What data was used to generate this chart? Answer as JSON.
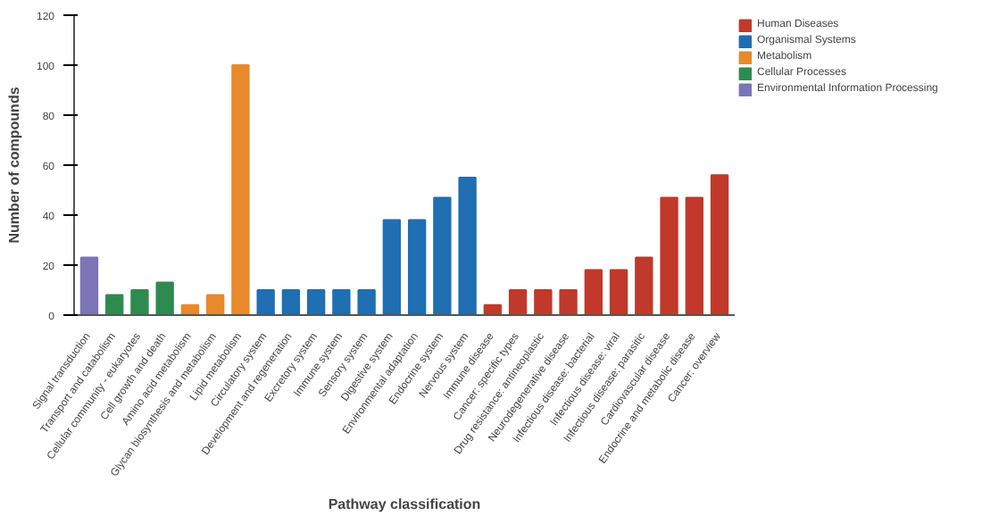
{
  "chart_data": {
    "type": "bar",
    "xlabel": "Pathway classification",
    "ylabel": "Number of compounds",
    "categories": [
      "Signal transduction",
      "Transport and catabolism",
      "Cellular community - eukaryotes",
      "Cell growth and death",
      "Amino acid metabolism",
      "Glycan biosynthesis and metabolism",
      "Lipid metabolism",
      "Circulatory system",
      "Development and regeneration",
      "Excretory system",
      "Immune system",
      "Sensory system",
      "Digestive system",
      "Environmental adaptation",
      "Endocrine system",
      "Nervous system",
      "Immune disease",
      "Cancer: specific types",
      "Drug resistance: antineoplastic",
      "Neurodegenerative disease",
      "Infectious disease: bacterial",
      "Infectious disease: viral",
      "Infectious disease: parasitic",
      "Cardiovascular disease",
      "Endocrine and metabolic disease",
      "Cancer: overview"
    ],
    "series": [
      {
        "name": "Human Diseases",
        "color": "#c0392b",
        "values": [
          null,
          null,
          null,
          null,
          null,
          null,
          null,
          null,
          null,
          null,
          null,
          null,
          null,
          null,
          null,
          null,
          4,
          10,
          10,
          10,
          18,
          18,
          23,
          47,
          47,
          56
        ]
      },
      {
        "name": "Organismal Systems",
        "color": "#1f6fb2",
        "values": [
          null,
          null,
          null,
          null,
          null,
          null,
          null,
          10,
          10,
          10,
          10,
          10,
          38,
          38,
          47,
          55,
          null,
          null,
          null,
          null,
          null,
          null,
          null,
          null,
          null,
          null
        ]
      },
      {
        "name": "Metabolism",
        "color": "#e8892b",
        "values": [
          null,
          null,
          null,
          null,
          4,
          8,
          100,
          null,
          null,
          null,
          null,
          null,
          null,
          null,
          null,
          null,
          null,
          null,
          null,
          null,
          null,
          null,
          null,
          null,
          null,
          null
        ]
      },
      {
        "name": "Cellular Processes",
        "color": "#2e8b4f",
        "values": [
          null,
          8,
          10,
          13,
          null,
          null,
          null,
          null,
          null,
          null,
          null,
          null,
          null,
          null,
          null,
          null,
          null,
          null,
          null,
          null,
          null,
          null,
          null,
          null,
          null,
          null
        ]
      },
      {
        "name": "Environmental Information Processing",
        "color": "#7b75b8",
        "values": [
          23,
          null,
          null,
          null,
          null,
          null,
          null,
          null,
          null,
          null,
          null,
          null,
          null,
          null,
          null,
          null,
          null,
          null,
          null,
          null,
          null,
          null,
          null,
          null,
          null,
          null
        ]
      }
    ],
    "ylim": [
      0,
      120
    ],
    "yticks": [
      0,
      20,
      40,
      60,
      80,
      100,
      120
    ],
    "legend": "top right",
    "grid": false
  }
}
